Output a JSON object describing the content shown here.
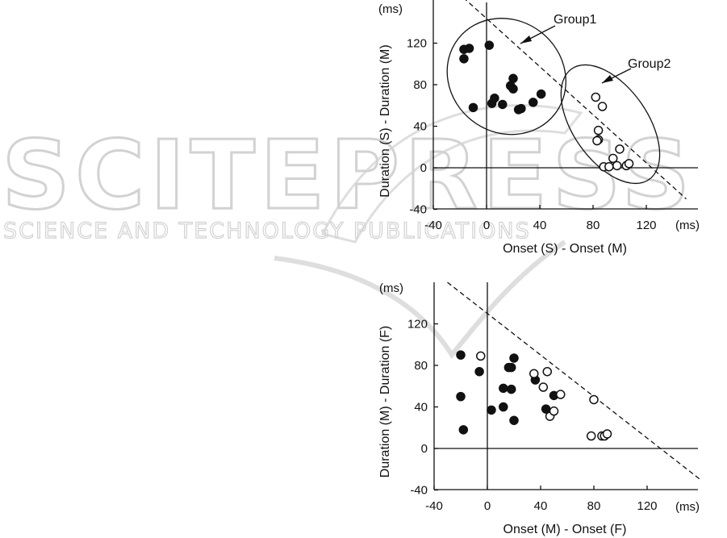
{
  "watermark": {
    "main_text": "SCITEPRESS",
    "sub_text": "SCIENCE AND TECHNOLOGY PUBLICATIONS"
  },
  "chart_data": [
    {
      "type": "scatter",
      "xlabel": "Onset (S) - Onset (M)",
      "ylabel": "Duration (S) - Duration (M)",
      "x_unit": "(ms)",
      "y_unit": "(ms)",
      "xlim": [
        -40,
        150
      ],
      "ylim": [
        -40,
        160
      ],
      "xticks": [
        -40,
        0,
        40,
        80,
        120
      ],
      "yticks": [
        -40,
        0,
        40,
        80,
        120
      ],
      "reference_line": {
        "style": "dashed",
        "points": [
          [
            -40,
            190
          ],
          [
            150,
            -30
          ]
        ]
      },
      "annotations": [
        {
          "text": "Group1",
          "arrow_to": "group1-ellipse"
        },
        {
          "text": "Group2",
          "arrow_to": "group2-ellipse"
        }
      ],
      "groups": [
        {
          "name": "Group1",
          "marker": "filled",
          "ellipse": {
            "cx": 15,
            "cy": 88,
            "rx": 46,
            "ry": 54,
            "rotate_deg": 38
          },
          "points": [
            [
              -17,
              114
            ],
            [
              -17,
              105
            ],
            [
              -13,
              115
            ],
            [
              -10,
              58
            ],
            [
              2,
              118
            ],
            [
              4,
              62
            ],
            [
              6,
              67
            ],
            [
              12,
              61
            ],
            [
              18,
              79
            ],
            [
              20,
              86
            ],
            [
              20,
              76
            ],
            [
              24,
              56
            ],
            [
              26,
              57
            ],
            [
              35,
              63
            ],
            [
              41,
              71
            ]
          ]
        },
        {
          "name": "Group2",
          "marker": "open",
          "ellipse": {
            "cx": 93,
            "cy": 42,
            "rx": 28,
            "ry": 65,
            "rotate_deg": -35
          },
          "points": [
            [
              82,
              68
            ],
            [
              87,
              59
            ],
            [
              84,
              36
            ],
            [
              84,
              27
            ],
            [
              83,
              26
            ],
            [
              88,
              1
            ],
            [
              92,
              1
            ],
            [
              95,
              9
            ],
            [
              98,
              2
            ],
            [
              105,
              2
            ],
            [
              107,
              4
            ],
            [
              100,
              18
            ]
          ]
        }
      ]
    },
    {
      "type": "scatter",
      "xlabel": "Onset (M) - Onset (F)",
      "ylabel": "Duration (M) - Duration (F)",
      "x_unit": "(ms)",
      "y_unit": "(ms)",
      "xlim": [
        -40,
        160
      ],
      "ylim": [
        -40,
        160
      ],
      "xticks": [
        -40,
        0,
        40,
        80,
        120
      ],
      "yticks": [
        -40,
        0,
        40,
        80,
        120
      ],
      "reference_line": {
        "style": "dashed",
        "points": [
          [
            -30,
            160
          ],
          [
            160,
            -30
          ]
        ]
      },
      "series": [
        {
          "marker": "filled",
          "points": [
            [
              -20,
              90
            ],
            [
              -20,
              50
            ],
            [
              -18,
              18
            ],
            [
              -6,
              74
            ],
            [
              3,
              37
            ],
            [
              12,
              58
            ],
            [
              12,
              40
            ],
            [
              16,
              78
            ],
            [
              18,
              78
            ],
            [
              18,
              57
            ],
            [
              20,
              87
            ],
            [
              20,
              27
            ],
            [
              36,
              66
            ],
            [
              44,
              38
            ],
            [
              50,
              51
            ]
          ]
        },
        {
          "marker": "open",
          "points": [
            [
              -5,
              89
            ],
            [
              35,
              72
            ],
            [
              42,
              59
            ],
            [
              45,
              74
            ],
            [
              47,
              31
            ],
            [
              50,
              36
            ],
            [
              55,
              52
            ],
            [
              78,
              12
            ],
            [
              80,
              47
            ],
            [
              86,
              12
            ],
            [
              88,
              12
            ],
            [
              90,
              14
            ]
          ]
        }
      ]
    }
  ]
}
